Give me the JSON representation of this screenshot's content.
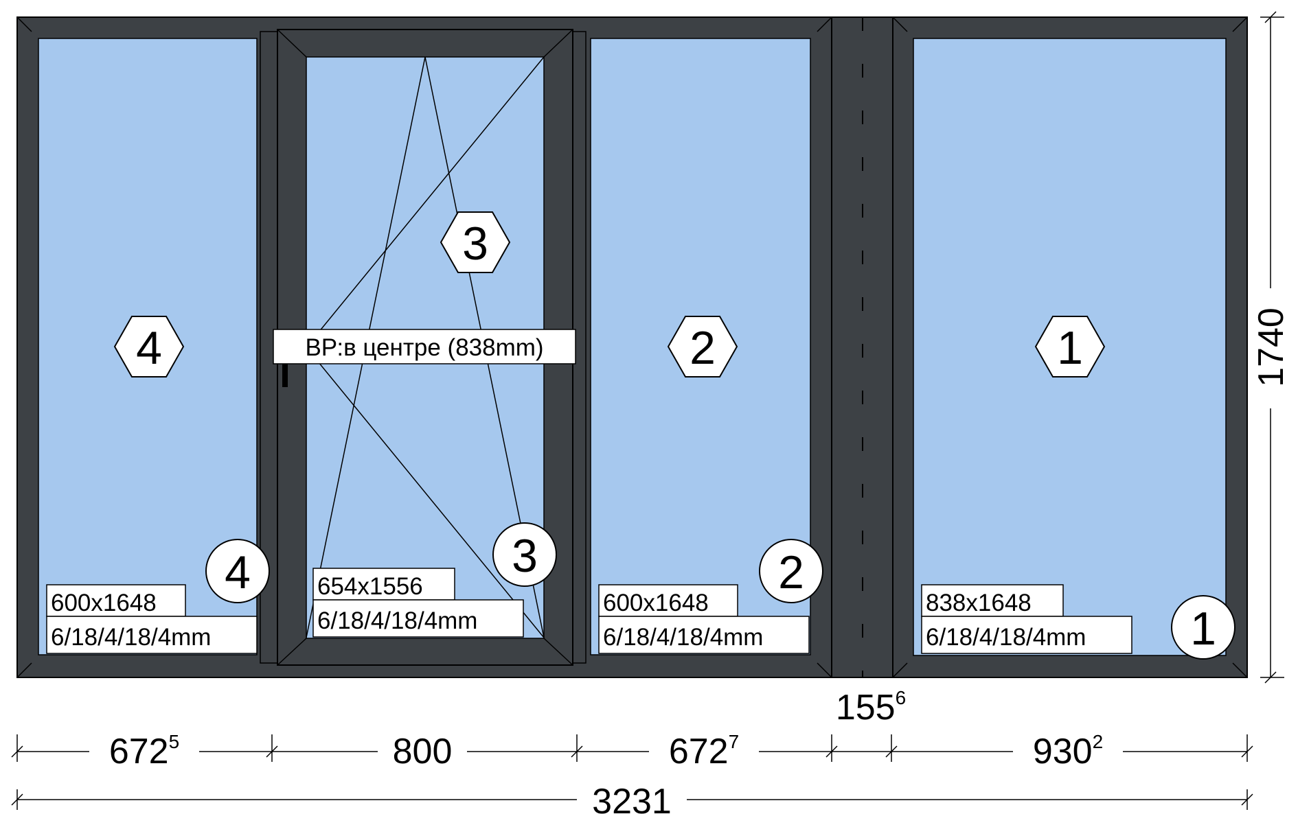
{
  "panes": [
    {
      "number": "4",
      "glass_size": "600x1648",
      "glass_formula": "6/18/4/18/4mm"
    },
    {
      "number": "3",
      "glass_size": "654x1556",
      "glass_formula": "6/18/4/18/4mm",
      "handle_note": "ВР:в центре (838mm)"
    },
    {
      "number": "2",
      "glass_size": "600x1648",
      "glass_formula": "6/18/4/18/4mm"
    },
    {
      "number": "1",
      "glass_size": "838x1648",
      "glass_formula": "6/18/4/18/4mm"
    }
  ],
  "dimensions": {
    "segment_1": {
      "main": "672",
      "sup": "5"
    },
    "segment_2": {
      "main": "800",
      "sup": ""
    },
    "segment_3": {
      "main": "672",
      "sup": "7"
    },
    "connector": {
      "main": "155",
      "sup": "6"
    },
    "segment_4": {
      "main": "930",
      "sup": "2"
    },
    "total_width": "3231",
    "total_height": "1740"
  },
  "colors": {
    "frame": "#3d4145",
    "glass": "#a6c8ee",
    "outline": "#000000",
    "label_background": "#ffffff"
  }
}
